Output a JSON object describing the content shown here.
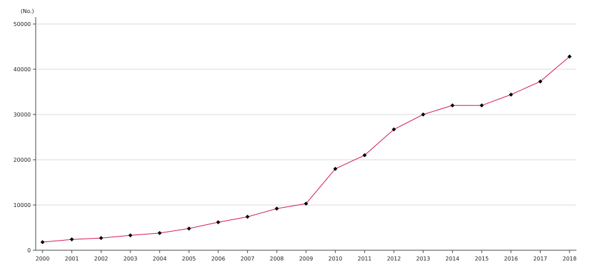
{
  "chart_data": {
    "type": "line",
    "title": "",
    "xlabel": "",
    "ylabel": "(No.)",
    "categories": [
      "2000",
      "2001",
      "2002",
      "2003",
      "2004",
      "2005",
      "2006",
      "2007",
      "2008",
      "2009",
      "2010",
      "2011",
      "2012",
      "2013",
      "2014",
      "2015",
      "2016",
      "2017",
      "2018"
    ],
    "series": [
      {
        "values": [
          1800,
          2400,
          2700,
          3300,
          3800,
          4800,
          6200,
          7400,
          9200,
          10300,
          18000,
          21000,
          26700,
          30000,
          32000,
          32000,
          34400,
          37300,
          42800
        ]
      }
    ],
    "ylim": [
      0,
      50000
    ],
    "yticks": [
      "0",
      "10000",
      "20000",
      "30000",
      "40000",
      "50000"
    ],
    "grid": true,
    "legend": "none",
    "line_color": "#d4145a",
    "marker_color": "#000000",
    "grid_color": "#d9d9d9",
    "axis_color": "#444444"
  }
}
